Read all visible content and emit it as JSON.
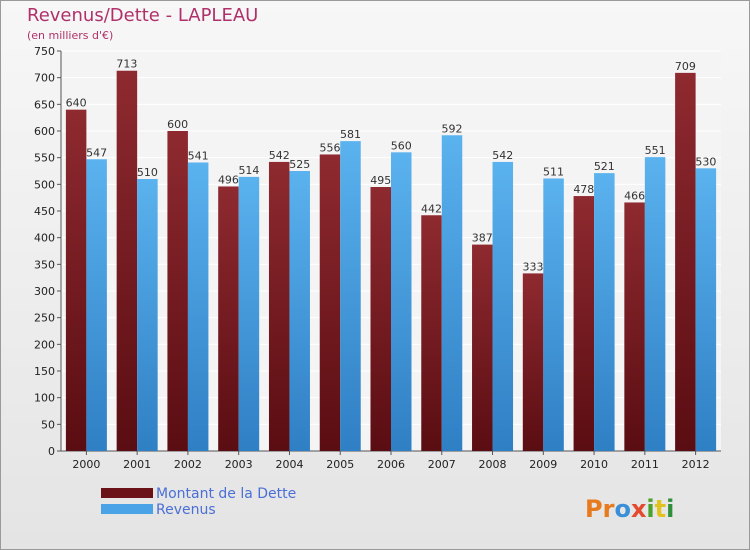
{
  "title": "Revenus/Dette - LAPLEAU",
  "subtitle": "(en milliers d'€)",
  "logo": "Proxiti",
  "colors": {
    "debt": "#7a1d22",
    "revenue": "#4aa3e6",
    "title": "#b0306a",
    "legend_text": "#4a6fd6"
  },
  "chart_data": {
    "type": "bar",
    "categories": [
      "2000",
      "2001",
      "2002",
      "2003",
      "2004",
      "2005",
      "2006",
      "2007",
      "2008",
      "2009",
      "2010",
      "2011",
      "2012"
    ],
    "series": [
      {
        "name": "Montant de la Dette",
        "values": [
          640,
          713,
          600,
          496,
          542,
          556,
          495,
          442,
          387,
          333,
          478,
          466,
          709
        ]
      },
      {
        "name": "Revenus",
        "values": [
          547,
          510,
          541,
          514,
          525,
          581,
          560,
          592,
          542,
          511,
          521,
          551,
          530
        ]
      }
    ],
    "ylim": [
      0,
      750
    ],
    "yticks": [
      0,
      50,
      100,
      150,
      200,
      250,
      300,
      350,
      400,
      450,
      500,
      550,
      600,
      650,
      700,
      750
    ],
    "grid": true,
    "legend": "bottom-left"
  }
}
